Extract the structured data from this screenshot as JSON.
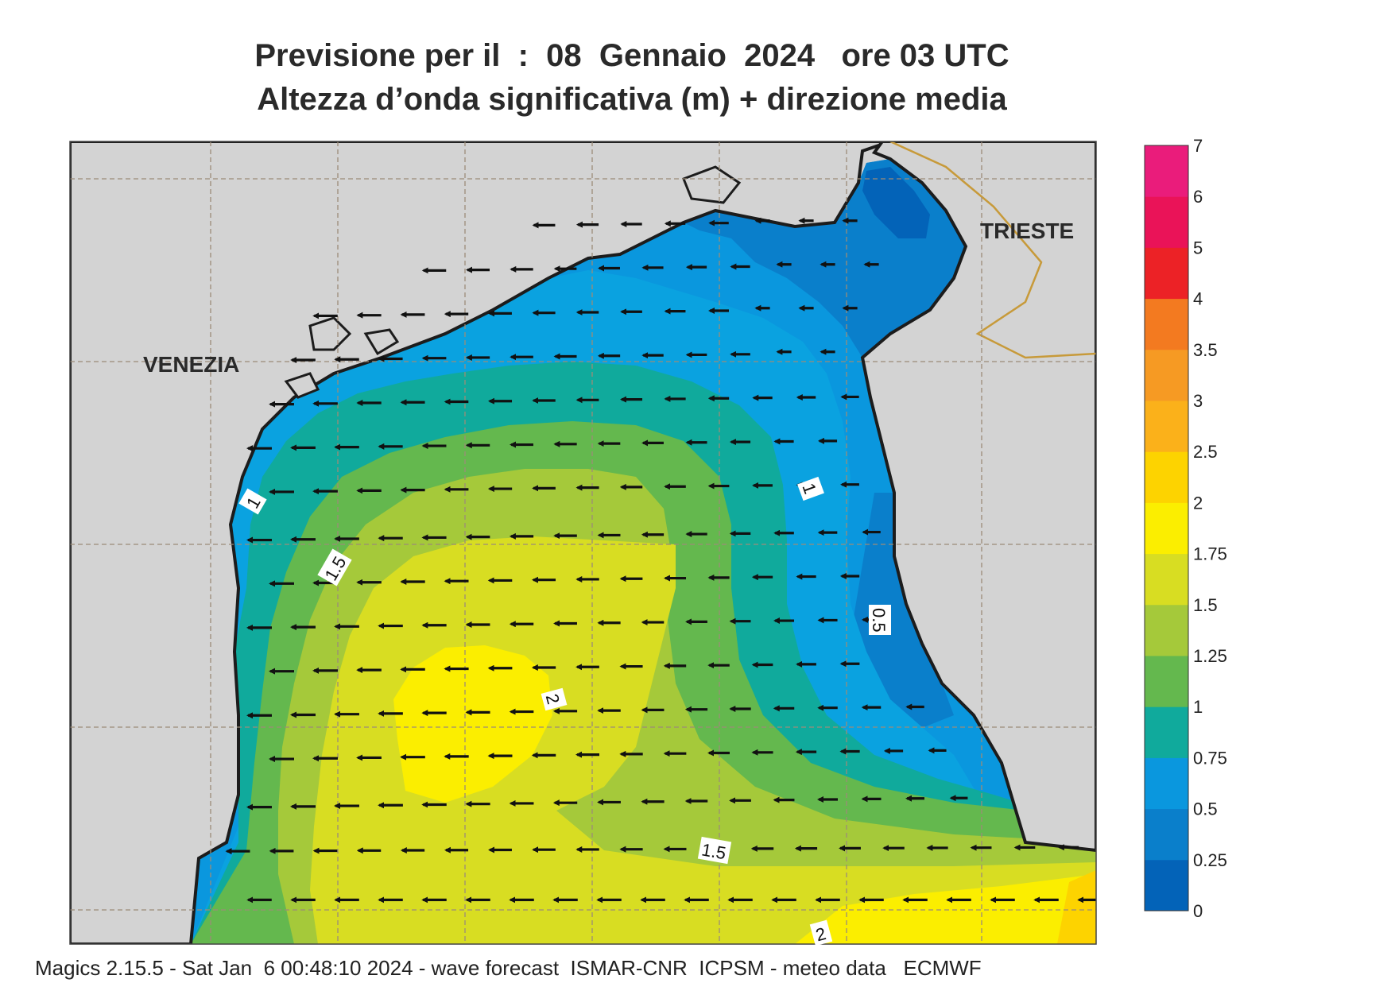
{
  "title_line1": "Previsione per il  :  08  Gennaio  2024   ore 03 UTC",
  "title_line2": "Altezza d’onda significativa (m) + direzione media",
  "cities": [
    "VENEZIA",
    "TRIESTE"
  ],
  "contour_labels": [
    "1",
    "1.5",
    "2",
    "1",
    "0.5",
    "1.5",
    "2"
  ],
  "legend": {
    "ticks": [
      "0",
      "0.25",
      "0.5",
      "0.75",
      "1",
      "1.25",
      "1.5",
      "1.75",
      "2",
      "2.5",
      "3",
      "3.5",
      "4",
      "5",
      "6",
      "7"
    ],
    "colors": [
      "#0363b8",
      "#0a7fcb",
      "#0a97de",
      "#10aa9c",
      "#64b84e",
      "#a5c93a",
      "#d8dd22",
      "#fbee00",
      "#fdd300",
      "#fbb11a",
      "#f69a23",
      "#f37a20",
      "#ec2226",
      "#ea1358",
      "#ea1c7b"
    ]
  },
  "colors": {
    "land": "#d3d3d3",
    "coast": "#1c1c1c",
    "border": "#c79a3a",
    "grid": "#9c8c78",
    "arrow": "#111111"
  },
  "footer": "Magics 2.15.5 - Sat Jan  6 00:48:10 2024 - wave forecast  ISMAR-CNR  ICPSM - meteo data   ECMWF"
}
